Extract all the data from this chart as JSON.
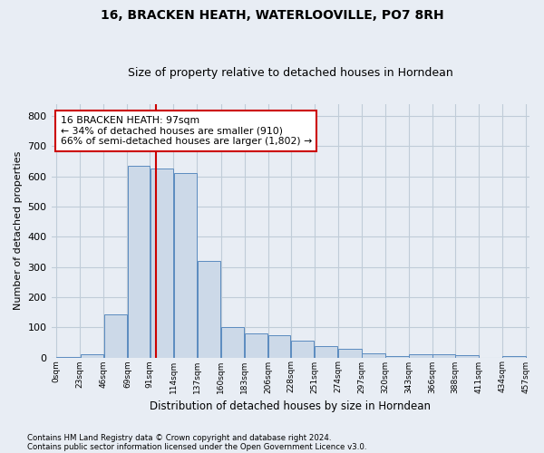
{
  "title": "16, BRACKEN HEATH, WATERLOOVILLE, PO7 8RH",
  "subtitle": "Size of property relative to detached houses in Horndean",
  "xlabel": "Distribution of detached houses by size in Horndean",
  "ylabel": "Number of detached properties",
  "footnote1": "Contains HM Land Registry data © Crown copyright and database right 2024.",
  "footnote2": "Contains public sector information licensed under the Open Government Licence v3.0.",
  "bin_edges": [
    0,
    23,
    46,
    69,
    91,
    114,
    137,
    160,
    183,
    206,
    228,
    251,
    274,
    297,
    320,
    343,
    366,
    388,
    411,
    434,
    457
  ],
  "bar_heights": [
    2,
    10,
    142,
    635,
    625,
    610,
    320,
    100,
    80,
    75,
    55,
    38,
    28,
    13,
    5,
    11,
    11,
    8,
    0,
    4
  ],
  "bar_color": "#ccd9e8",
  "bar_edge_color": "#5b8bbf",
  "property_size": 97,
  "vline_color": "#cc0000",
  "annotation_line1": "16 BRACKEN HEATH: 97sqm",
  "annotation_line2": "← 34% of detached houses are smaller (910)",
  "annotation_line3": "66% of semi-detached houses are larger (1,802) →",
  "annotation_box_color": "#ffffff",
  "annotation_box_edge": "#cc0000",
  "ylim": [
    0,
    840
  ],
  "yticks": [
    0,
    100,
    200,
    300,
    400,
    500,
    600,
    700,
    800
  ],
  "grid_color": "#c0ccd8",
  "background_color": "#e8edf4",
  "title_fontsize": 10,
  "subtitle_fontsize": 9
}
